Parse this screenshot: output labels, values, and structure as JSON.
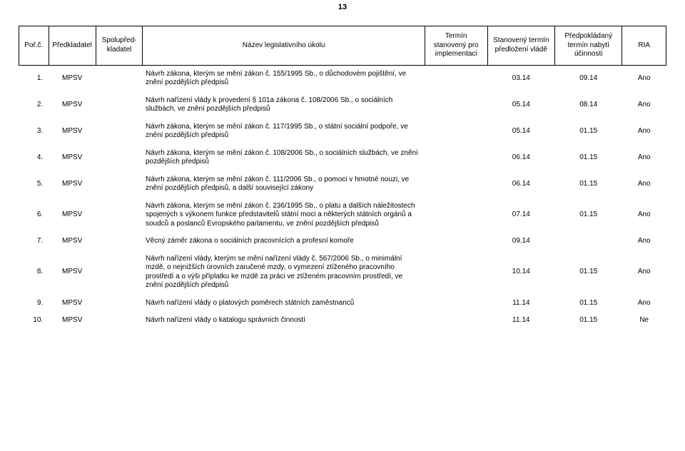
{
  "page_number": "13",
  "columns": {
    "c1": "Poř.č.",
    "c2": "Předkladatel",
    "c3": "Spolupřed- kladatel",
    "c4": "Název legislativního úkolu",
    "c5_l1": "Termín",
    "c5_l2": "stanovený pro",
    "c5_l3": "implementaci",
    "c6_l1": "Stanovený termín",
    "c6_l2": "předložení vládě",
    "c7_l1": "Předpokládaný",
    "c7_l2": "termín nabytí",
    "c7_l3": "účinnosti",
    "c8": "RIA"
  },
  "col_widths": {
    "c1": 38,
    "c2": 60,
    "c3": 60,
    "c4": 360,
    "c5": 80,
    "c6": 86,
    "c7": 86,
    "c8": 56
  },
  "rows": [
    {
      "idx": "1.",
      "predkl": "MPSV",
      "spolu": "",
      "nazev": "Návrh zákona, kterým se mění zákon č. 155/1995 Sb., o důchodovém pojištění, ve znění pozdějších předpisů",
      "imp": "",
      "pred": "03.14",
      "uci": "09.14",
      "ria": "Ano"
    },
    {
      "idx": "2.",
      "predkl": "MPSV",
      "spolu": "",
      "nazev": "Návrh nařízení vlády k provedení § 101a zákona č. 108/2006 Sb., o sociálních službách, ve znění pozdějších předpisů",
      "imp": "",
      "pred": "05.14",
      "uci": "08.14",
      "ria": "Ano"
    },
    {
      "idx": "3.",
      "predkl": "MPSV",
      "spolu": "",
      "nazev": "Návrh zákona, kterým se mění zákon č. 117/1995 Sb., o státní sociální podpoře, ve znění pozdějších předpisů",
      "imp": "",
      "pred": "05.14",
      "uci": "01.15",
      "ria": "Ano"
    },
    {
      "idx": "4.",
      "predkl": "MPSV",
      "spolu": "",
      "nazev": "Návrh zákona, kterým se mění zákon č. 108/2006 Sb., o sociálních službách, ve znění pozdějších předpisů",
      "imp": "",
      "pred": "06.14",
      "uci": "01.15",
      "ria": "Ano"
    },
    {
      "idx": "5.",
      "predkl": "MPSV",
      "spolu": "",
      "nazev": "Návrh zákona, kterým se mění zákon č. 111/2006 Sb., o pomoci v hmotné nouzi, ve znění pozdějších předpisů, a další související zákony",
      "imp": "",
      "pred": "06.14",
      "uci": "01.15",
      "ria": "Ano"
    },
    {
      "idx": "6.",
      "predkl": "MPSV",
      "spolu": "",
      "nazev": "Návrh zákona, kterým se mění zákon č. 236/1995 Sb., o platu a dalších náležitostech spojených s výkonem funkce představitelů státní moci a některých státních orgánů a soudců a poslanců Evropského parlamentu, ve znění pozdějších předpisů",
      "imp": "",
      "pred": "07.14",
      "uci": "01.15",
      "ria": "Ano"
    },
    {
      "idx": "7.",
      "predkl": "MPSV",
      "spolu": "",
      "nazev": "Věcný záměr zákona o sociálních pracovnících a profesní komoře",
      "imp": "",
      "pred": "09.14",
      "uci": "",
      "ria": "Ano"
    },
    {
      "idx": "8.",
      "predkl": "MPSV",
      "spolu": "",
      "nazev": "Návrh nařízení vlády, kterým se mění nařízení vlády č. 567/2006 Sb., o minimální mzdě, o nejnižších úrovních zaručené mzdy, o vymezení ztíženého pracovního prostředí a o výši příplatku ke mzdě za práci ve ztíženém pracovním prostředí, ve znění pozdějších předpisů",
      "imp": "",
      "pred": "10.14",
      "uci": "01.15",
      "ria": "Ano"
    },
    {
      "idx": "9.",
      "predkl": "MPSV",
      "spolu": "",
      "nazev": "Návrh nařízení vlády o platových poměrech státních zaměstnanců",
      "imp": "",
      "pred": "11.14",
      "uci": "01.15",
      "ria": "Ano"
    },
    {
      "idx": "10.",
      "predkl": "MPSV",
      "spolu": "",
      "nazev": "Návrh nařízení vlády o katalogu správních činností",
      "imp": "",
      "pred": "11.14",
      "uci": "01.15",
      "ria": "Ne"
    }
  ]
}
